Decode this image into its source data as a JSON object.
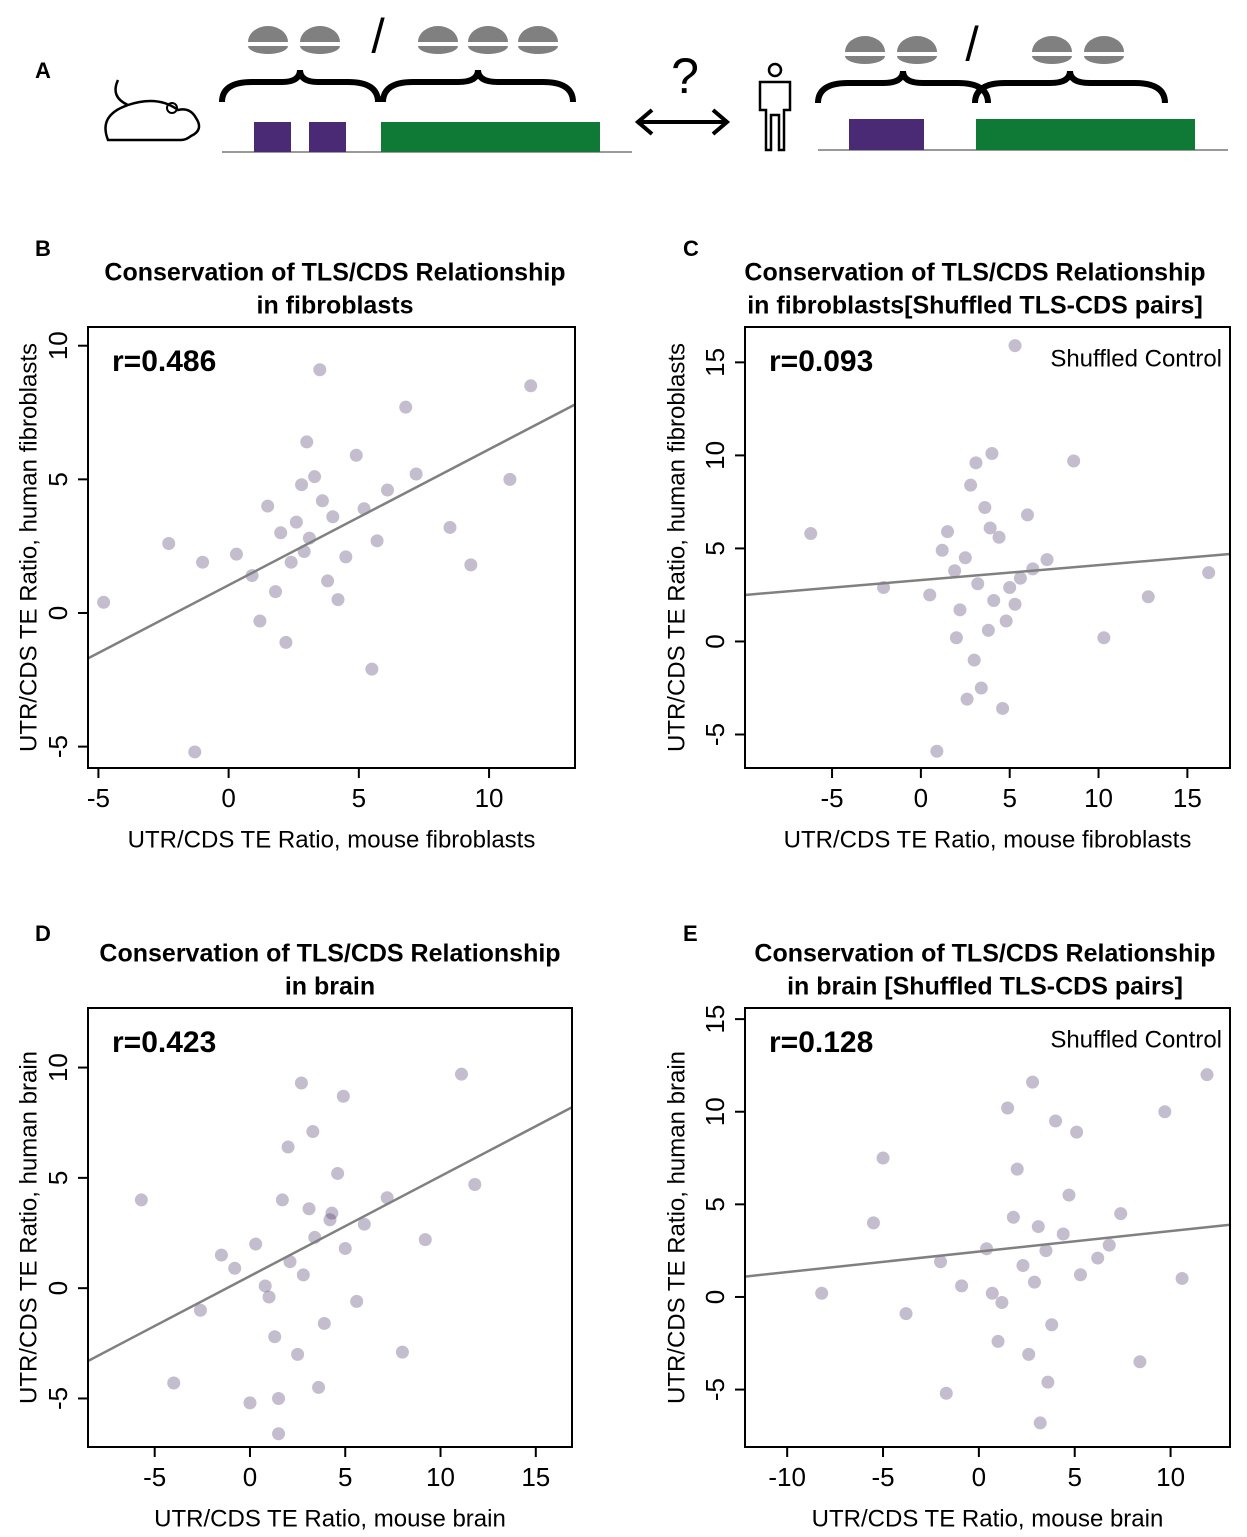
{
  "panel_a": {
    "label": "A",
    "slash_left": "/",
    "slash_right": "/",
    "question": "?"
  },
  "chart_data": [
    {
      "type": "scatter",
      "panel_label": "B",
      "title": [
        "Conservation of TLS/CDS Relationship",
        "in fibroblasts"
      ],
      "x_label": "UTR/CDS TE Ratio, mouse fibroblasts",
      "y_label": "UTR/CDS TE Ratio, human fibroblasts",
      "annotations": [
        "r=0.486"
      ],
      "color": "#3b2658",
      "xlim": [
        -5.4,
        13.3
      ],
      "ylim": [
        -5.8,
        10.7
      ],
      "xticks": [
        -5,
        0,
        5,
        10
      ],
      "yticks": [
        -5,
        0,
        5,
        10
      ],
      "trend_line": {
        "x": [
          -5.4,
          13.3
        ],
        "y": [
          -1.7,
          7.8
        ],
        "color": "#808080"
      },
      "x": [
        3.1,
        2.4,
        4.0,
        1.8,
        3.6,
        2.9,
        5.2,
        0.9,
        4.5,
        3.3,
        2.0,
        6.1,
        1.2,
        3.8,
        4.9,
        2.6,
        0.3,
        5.7,
        3.0,
        7.2,
        -1.0,
        4.2,
        2.2,
        8.5,
        1.5,
        3.5,
        -2.3,
        6.8,
        9.3,
        11.6,
        -4.8,
        10.8,
        -1.3,
        5.5,
        2.8
      ],
      "y": [
        2.8,
        1.9,
        3.6,
        0.8,
        4.2,
        2.3,
        3.9,
        1.4,
        2.1,
        5.1,
        3.0,
        4.6,
        -0.3,
        1.2,
        5.9,
        3.4,
        2.2,
        2.7,
        6.4,
        5.2,
        1.9,
        0.5,
        -1.1,
        3.2,
        4.0,
        9.1,
        2.6,
        7.7,
        1.8,
        8.5,
        0.4,
        5.0,
        -5.2,
        -2.1,
        4.8
      ]
    },
    {
      "type": "scatter",
      "panel_label": "C",
      "title": [
        "Conservation of TLS/CDS Relationship",
        "in fibroblasts[Shuffled TLS-CDS pairs]"
      ],
      "x_label": "UTR/CDS TE Ratio, mouse fibroblasts",
      "y_label": "UTR/CDS TE Ratio, human fibroblasts",
      "annotations": [
        "r=0.093",
        "Shuffled Control"
      ],
      "color": "#3b2658",
      "xlim": [
        -9.9,
        17.4
      ],
      "ylim": [
        -6.8,
        16.9
      ],
      "xticks": [
        -5,
        0,
        5,
        10,
        15
      ],
      "yticks": [
        -5,
        0,
        5,
        10,
        15
      ],
      "trend_line": {
        "x": [
          -9.9,
          17.4
        ],
        "y": [
          2.5,
          4.7
        ],
        "color": "#808080"
      },
      "x": [
        3.2,
        4.1,
        2.5,
        3.8,
        1.9,
        5.0,
        3.0,
        4.4,
        2.2,
        3.6,
        5.6,
        1.2,
        3.4,
        4.8,
        2.8,
        6.3,
        0.5,
        3.9,
        2.0,
        7.1,
        4.6,
        1.5,
        3.1,
        5.3,
        -6.2,
        16.2,
        12.8,
        10.3,
        5.3,
        0.9,
        8.6,
        4.0,
        2.6,
        -2.1,
        6.0
      ],
      "y": [
        3.1,
        2.2,
        4.5,
        0.6,
        3.8,
        2.9,
        -1.0,
        5.6,
        1.7,
        7.2,
        3.4,
        4.9,
        -2.5,
        1.1,
        8.4,
        3.9,
        2.5,
        6.1,
        0.2,
        4.4,
        -3.6,
        5.9,
        9.6,
        2.0,
        5.8,
        3.7,
        2.4,
        0.2,
        15.9,
        -5.9,
        9.7,
        10.1,
        -3.1,
        2.9,
        6.8
      ]
    },
    {
      "type": "scatter",
      "panel_label": "D",
      "title": [
        "Conservation of TLS/CDS Relationship",
        "in brain"
      ],
      "x_label": "UTR/CDS TE Ratio, mouse brain",
      "y_label": "UTR/CDS TE Ratio, human brain",
      "annotations": [
        "r=0.423"
      ],
      "color": "#3b2658",
      "xlim": [
        -8.5,
        16.9
      ],
      "ylim": [
        -7.2,
        12.7
      ],
      "xticks": [
        -5,
        0,
        5,
        10,
        15
      ],
      "yticks": [
        -5,
        0,
        5,
        10
      ],
      "trend_line": {
        "x": [
          -8.5,
          16.9
        ],
        "y": [
          -3.3,
          8.2
        ],
        "color": "#808080"
      },
      "x": [
        2.1,
        3.4,
        1.0,
        4.2,
        2.8,
        0.3,
        3.9,
        1.7,
        5.0,
        2.5,
        -0.8,
        4.6,
        3.1,
        1.3,
        6.0,
        2.0,
        -1.5,
        3.6,
        7.2,
        0.8,
        4.9,
        2.7,
        -2.6,
        5.6,
        1.5,
        3.3,
        8.0,
        -5.7,
        11.1,
        11.8,
        -4.0,
        1.5,
        9.2,
        0.0,
        4.3
      ],
      "y": [
        1.2,
        2.3,
        -0.4,
        3.1,
        0.6,
        2.0,
        -1.6,
        4.0,
        1.8,
        -3.0,
        0.9,
        5.2,
        3.6,
        -2.2,
        2.9,
        6.4,
        1.5,
        -4.5,
        4.1,
        0.1,
        8.7,
        9.3,
        -1.0,
        -0.6,
        -5.0,
        7.1,
        -2.9,
        4.0,
        9.7,
        4.7,
        -4.3,
        -6.6,
        2.2,
        -5.2,
        3.4
      ]
    },
    {
      "type": "scatter",
      "panel_label": "E",
      "title": [
        "Conservation of TLS/CDS Relationship",
        "in brain [Shuffled TLS-CDS pairs]"
      ],
      "x_label": "UTR/CDS TE Ratio, mouse brain",
      "y_label": "UTR/CDS TE Ratio, human brain",
      "annotations": [
        "r=0.128",
        "Shuffled Control"
      ],
      "color": "#3b2658",
      "xlim": [
        -12.2,
        13.1
      ],
      "ylim": [
        -8.1,
        15.6
      ],
      "xticks": [
        -10,
        -5,
        0,
        5,
        10
      ],
      "yticks": [
        -5,
        0,
        5,
        10,
        15
      ],
      "trend_line": {
        "x": [
          -12.2,
          13.1
        ],
        "y": [
          1.1,
          3.9
        ],
        "color": "#808080"
      },
      "x": [
        2.3,
        3.5,
        1.2,
        4.4,
        2.9,
        0.4,
        3.8,
        1.8,
        5.3,
        2.6,
        -0.9,
        4.7,
        3.1,
        1.0,
        6.2,
        2.0,
        -2.0,
        3.6,
        7.4,
        0.7,
        5.1,
        -3.8,
        9.7,
        -8.2,
        11.9,
        10.6,
        -5.0,
        3.2,
        1.5,
        -5.5,
        8.4,
        2.8,
        -1.7,
        6.8,
        4.0
      ],
      "y": [
        1.7,
        2.5,
        -0.3,
        3.4,
        0.8,
        2.6,
        -1.5,
        4.3,
        1.2,
        -3.1,
        0.6,
        5.5,
        3.8,
        -2.4,
        2.1,
        6.9,
        1.9,
        -4.6,
        4.5,
        0.2,
        8.9,
        -0.9,
        10.0,
        0.2,
        12.0,
        1.0,
        7.5,
        -6.8,
        10.2,
        4.0,
        -3.5,
        11.6,
        -5.2,
        2.8,
        9.5
      ]
    }
  ]
}
